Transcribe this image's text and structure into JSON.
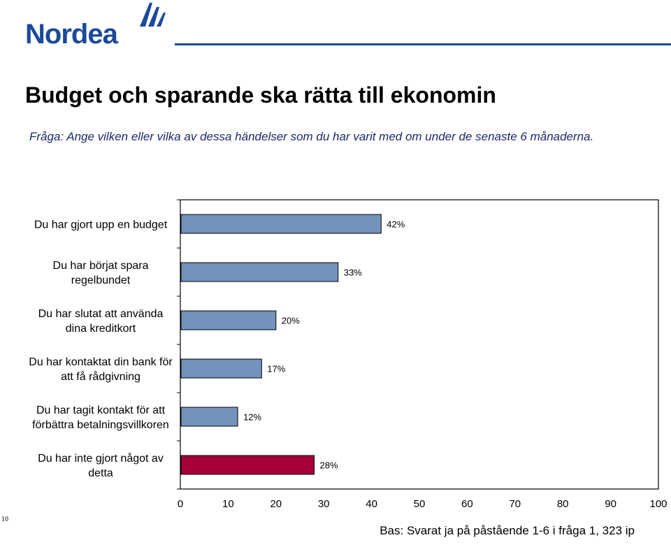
{
  "brand": {
    "name": "Nordea",
    "color": "#1b4a9a"
  },
  "title": "Budget och sparande ska rätta till ekonomin",
  "question": "Fråga: Ange vilken eller vilka av dessa händelser som du har varit med om under de senaste 6 månaderna.",
  "footnote": "Bas: Svarat ja på påstående 1-6 i fråga 1, 323 ip",
  "page_number": "10",
  "chart_data": {
    "type": "bar",
    "orientation": "horizontal",
    "categories": [
      [
        "Du har gjort upp en budget"
      ],
      [
        "Du har börjat spara",
        "regelbundet"
      ],
      [
        "Du har slutat att använda",
        "dina kreditkort"
      ],
      [
        "Du har kontaktat din bank för",
        "att få rådgivning"
      ],
      [
        "Du har tagit kontakt för att",
        "förbättra betalningsvillkoren"
      ],
      [
        "Du har inte gjort något av",
        "detta"
      ]
    ],
    "values": [
      42,
      33,
      20,
      17,
      12,
      28
    ],
    "value_labels": [
      "42%",
      "33%",
      "20%",
      "17%",
      "12%",
      "28%"
    ],
    "bar_colors": [
      "#7393bc",
      "#7393bc",
      "#7393bc",
      "#7393bc",
      "#7393bc",
      "#a5003a"
    ],
    "xlim": [
      0,
      100
    ],
    "xticks": [
      0,
      10,
      20,
      30,
      40,
      50,
      60,
      70,
      80,
      90,
      100
    ],
    "title": "",
    "xlabel": "",
    "ylabel": ""
  }
}
